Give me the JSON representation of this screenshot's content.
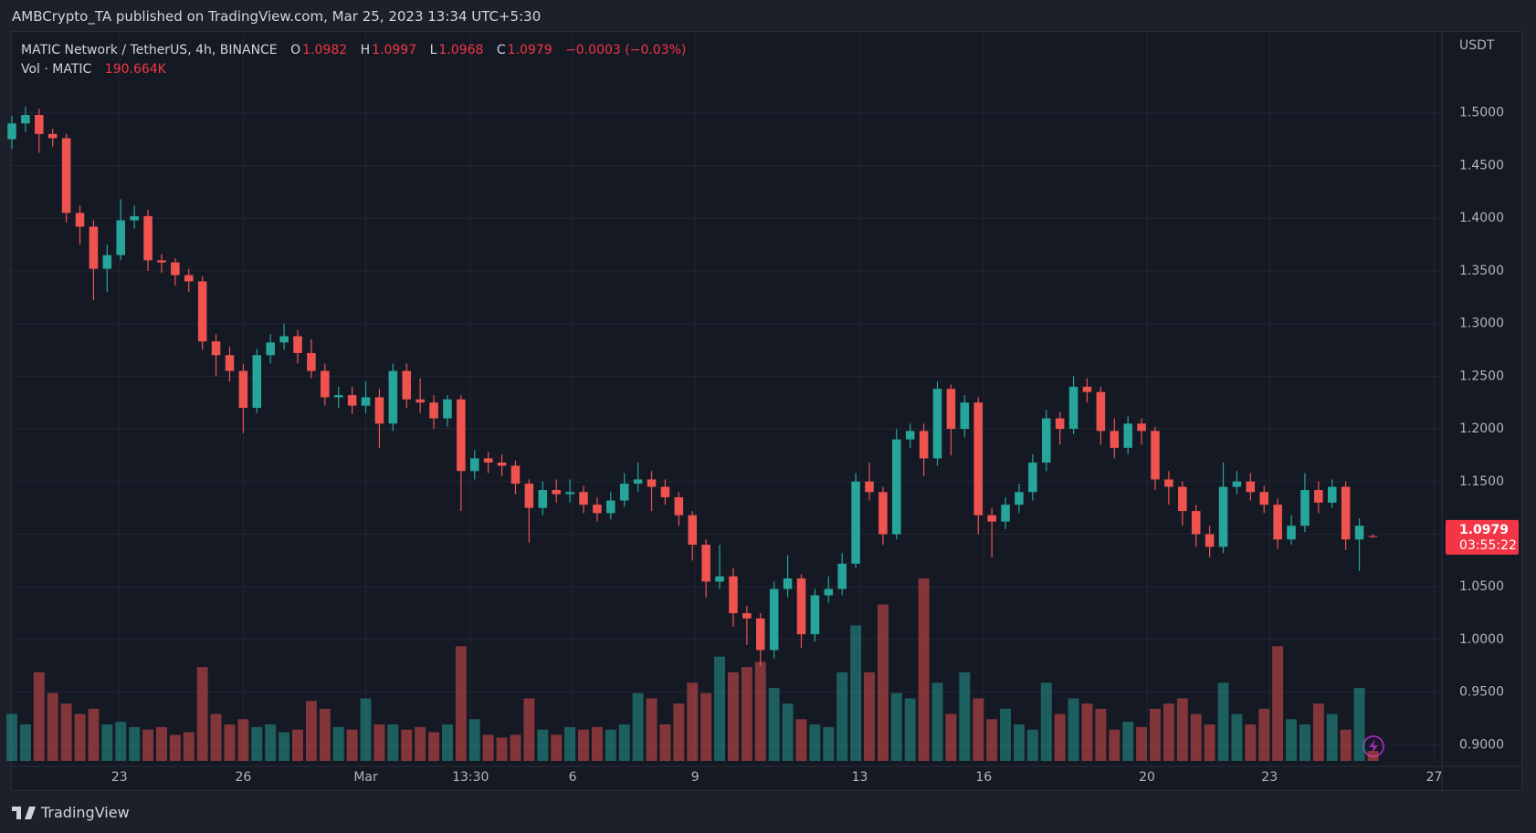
{
  "header": {
    "publisher": "AMBCrypto_TA published on TradingView.com, Mar 25, 2023 13:34 UTC+5:30"
  },
  "chart_data": {
    "type": "candlestick",
    "symbol": "MATIC Network / TetherUS, 4h, BINANCE",
    "ohlc_letters": [
      "O",
      "H",
      "L",
      "C"
    ],
    "change": "−0.0003 (−0.03%)",
    "volume_title": "Vol · MATIC",
    "last_volume_label": "190.664K",
    "price_unit": "USDT",
    "countdown": "03:55:22",
    "up_color": "#26a69a",
    "down_color": "#ef5350",
    "open": [
      1.475,
      1.49,
      1.498,
      1.48,
      1.476,
      1.405,
      1.392,
      1.352,
      1.365,
      1.398,
      1.402,
      1.36,
      1.358,
      1.346,
      1.34,
      1.283,
      1.27,
      1.255,
      1.22,
      1.27,
      1.282,
      1.288,
      1.272,
      1.255,
      1.23,
      1.232,
      1.222,
      1.23,
      1.205,
      1.255,
      1.228,
      1.225,
      1.21,
      1.228,
      1.16,
      1.172,
      1.168,
      1.165,
      1.148,
      1.125,
      1.142,
      1.138,
      1.14,
      1.128,
      1.12,
      1.132,
      1.148,
      1.152,
      1.145,
      1.135,
      1.118,
      1.09,
      1.055,
      1.06,
      1.025,
      1.02,
      0.99,
      1.048,
      1.058,
      1.005,
      1.042,
      1.048,
      1.072,
      1.15,
      1.14,
      1.1,
      1.19,
      1.198,
      1.172,
      1.238,
      1.2,
      1.225,
      1.118,
      1.112,
      1.128,
      1.14,
      1.168,
      1.21,
      1.2,
      1.24,
      1.235,
      1.198,
      1.182,
      1.205,
      1.198,
      1.152,
      1.145,
      1.122,
      1.1,
      1.088,
      1.145,
      1.15,
      1.14,
      1.128,
      1.095,
      1.108,
      1.142,
      1.13,
      1.145,
      1.095,
      1.0982
    ],
    "high": [
      1.497,
      1.506,
      1.504,
      1.485,
      1.48,
      1.412,
      1.398,
      1.375,
      1.418,
      1.412,
      1.408,
      1.366,
      1.362,
      1.352,
      1.345,
      1.29,
      1.278,
      1.262,
      1.276,
      1.29,
      1.3,
      1.294,
      1.285,
      1.262,
      1.24,
      1.24,
      1.245,
      1.238,
      1.262,
      1.262,
      1.248,
      1.232,
      1.232,
      1.232,
      1.18,
      1.178,
      1.176,
      1.17,
      1.152,
      1.15,
      1.152,
      1.152,
      1.146,
      1.135,
      1.14,
      1.158,
      1.168,
      1.16,
      1.152,
      1.14,
      1.122,
      1.095,
      1.09,
      1.068,
      1.032,
      1.025,
      1.055,
      1.08,
      1.062,
      1.048,
      1.06,
      1.082,
      1.158,
      1.168,
      1.145,
      1.2,
      1.205,
      1.205,
      1.245,
      1.242,
      1.232,
      1.23,
      1.125,
      1.135,
      1.148,
      1.176,
      1.218,
      1.216,
      1.25,
      1.248,
      1.24,
      1.21,
      1.212,
      1.21,
      1.202,
      1.16,
      1.15,
      1.128,
      1.108,
      1.168,
      1.16,
      1.158,
      1.146,
      1.134,
      1.118,
      1.158,
      1.15,
      1.152,
      1.15,
      1.115,
      1.0997
    ],
    "low": [
      1.466,
      1.482,
      1.462,
      1.468,
      1.396,
      1.375,
      1.322,
      1.33,
      1.36,
      1.39,
      1.35,
      1.348,
      1.336,
      1.33,
      1.275,
      1.25,
      1.245,
      1.196,
      1.215,
      1.262,
      1.275,
      1.262,
      1.248,
      1.222,
      1.22,
      1.214,
      1.215,
      1.182,
      1.198,
      1.22,
      1.215,
      1.2,
      1.202,
      1.122,
      1.152,
      1.158,
      1.155,
      1.138,
      1.092,
      1.118,
      1.13,
      1.13,
      1.12,
      1.112,
      1.114,
      1.126,
      1.14,
      1.122,
      1.128,
      1.108,
      1.075,
      1.04,
      1.048,
      1.012,
      0.995,
      0.975,
      0.982,
      1.04,
      0.992,
      0.998,
      1.035,
      1.042,
      1.068,
      1.132,
      1.09,
      1.095,
      1.182,
      1.155,
      1.165,
      1.175,
      1.192,
      1.1,
      1.078,
      1.105,
      1.12,
      1.132,
      1.16,
      1.185,
      1.195,
      1.225,
      1.185,
      1.172,
      1.176,
      1.185,
      1.142,
      1.128,
      1.108,
      1.088,
      1.078,
      1.082,
      1.138,
      1.132,
      1.12,
      1.086,
      1.09,
      1.102,
      1.12,
      1.125,
      1.085,
      1.065,
      1.0968
    ],
    "close": [
      1.49,
      1.498,
      1.48,
      1.476,
      1.405,
      1.392,
      1.352,
      1.365,
      1.398,
      1.402,
      1.36,
      1.358,
      1.346,
      1.34,
      1.283,
      1.27,
      1.255,
      1.22,
      1.27,
      1.282,
      1.288,
      1.272,
      1.255,
      1.23,
      1.232,
      1.222,
      1.23,
      1.205,
      1.255,
      1.228,
      1.225,
      1.21,
      1.228,
      1.16,
      1.172,
      1.168,
      1.165,
      1.148,
      1.125,
      1.142,
      1.138,
      1.14,
      1.128,
      1.12,
      1.132,
      1.148,
      1.152,
      1.145,
      1.135,
      1.118,
      1.09,
      1.055,
      1.06,
      1.025,
      1.02,
      0.99,
      1.048,
      1.058,
      1.005,
      1.042,
      1.048,
      1.072,
      1.15,
      1.14,
      1.1,
      1.19,
      1.198,
      1.172,
      1.238,
      1.2,
      1.225,
      1.118,
      1.112,
      1.128,
      1.14,
      1.168,
      1.21,
      1.2,
      1.24,
      1.235,
      1.198,
      1.182,
      1.205,
      1.198,
      1.152,
      1.145,
      1.122,
      1.1,
      1.088,
      1.145,
      1.15,
      1.14,
      1.128,
      1.095,
      1.108,
      1.142,
      1.13,
      1.145,
      1.095,
      1.108,
      1.0979
    ],
    "volume": [
      900,
      700,
      1700,
      1300,
      1100,
      900,
      1000,
      700,
      750,
      650,
      600,
      650,
      500,
      550,
      1800,
      900,
      700,
      800,
      650,
      700,
      550,
      600,
      1150,
      1000,
      650,
      600,
      1200,
      700,
      700,
      600,
      650,
      550,
      700,
      2200,
      800,
      500,
      450,
      500,
      1200,
      600,
      500,
      650,
      600,
      650,
      600,
      700,
      1300,
      1200,
      700,
      1100,
      1500,
      1300,
      2000,
      1700,
      1800,
      1900,
      1400,
      1100,
      800,
      700,
      650,
      1700,
      2600,
      1700,
      3000,
      1300,
      1200,
      3500,
      1500,
      900,
      1700,
      1200,
      800,
      1000,
      700,
      600,
      1500,
      900,
      1200,
      1100,
      1000,
      600,
      750,
      650,
      1000,
      1100,
      1200,
      900,
      700,
      1500,
      900,
      700,
      1000,
      2200,
      800,
      700,
      1100,
      900,
      600,
      1400,
      190.664
    ],
    "xlim": [
      0,
      105
    ],
    "xticks": [
      {
        "value": 7.9,
        "label": "23"
      },
      {
        "value": 17,
        "label": "26"
      },
      {
        "value": 26,
        "label": "Mar"
      },
      {
        "value": 33.7,
        "label": "13:30"
      },
      {
        "value": 41.2,
        "label": "6"
      },
      {
        "value": 50.2,
        "label": "9"
      },
      {
        "value": 62.3,
        "label": "13"
      },
      {
        "value": 71.4,
        "label": "16"
      },
      {
        "value": 83.4,
        "label": "20"
      },
      {
        "value": 92.4,
        "label": "23"
      },
      {
        "value": 104.5,
        "label": "27"
      }
    ],
    "ylim": [
      0.883,
      1.576
    ],
    "yticks": [
      {
        "value": 0.9,
        "label": "0.9000"
      },
      {
        "value": 0.95,
        "label": "0.9500"
      },
      {
        "value": 1.0,
        "label": "1.0000"
      },
      {
        "value": 1.05,
        "label": "1.0500"
      },
      {
        "value": 1.1,
        "label": "1.1000"
      },
      {
        "value": 1.15,
        "label": "1.1500"
      },
      {
        "value": 1.2,
        "label": "1.2000"
      },
      {
        "value": 1.25,
        "label": "1.2500"
      },
      {
        "value": 1.3,
        "label": "1.3000"
      },
      {
        "value": 1.35,
        "label": "1.3500"
      },
      {
        "value": 1.4,
        "label": "1.4000"
      },
      {
        "value": 1.45,
        "label": "1.4500"
      },
      {
        "value": 1.5,
        "label": "1.5000"
      }
    ],
    "grid": true
  },
  "footer": {
    "brand": "TradingView"
  }
}
